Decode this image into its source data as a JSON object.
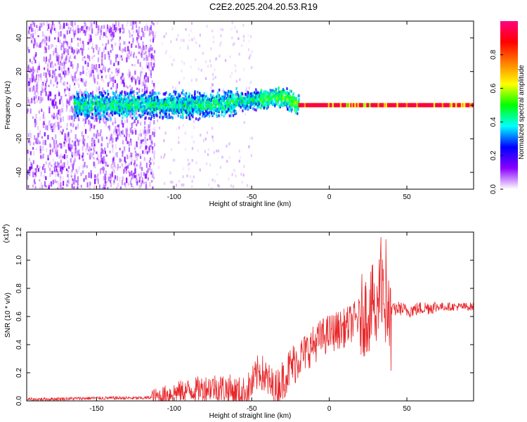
{
  "title": "C2E2.2025.204.20.53.R19",
  "chart_data": [
    {
      "type": "heatmap",
      "xlabel": "Height of straight line (km)",
      "ylabel": "Frequency (Hz)",
      "xlim": [
        -195,
        93
      ],
      "ylim": [
        -50,
        50
      ],
      "xticks": [
        -150,
        -100,
        -50,
        0,
        50
      ],
      "yticks": [
        -40,
        -20,
        0,
        20,
        40
      ],
      "colorbar": {
        "label": "Normalized spectral amplitude",
        "range": [
          0,
          1
        ],
        "ticks": [
          "0.0",
          "0.2",
          "0.4",
          "0.6",
          "0.8"
        ],
        "colors": [
          "#ffffff",
          "#8a00ff",
          "#0000ff",
          "#00ffff",
          "#00ff00",
          "#ffff00",
          "#ff8000",
          "#ff0000",
          "#ff0080"
        ]
      },
      "features": [
        {
          "x_range": [
            -195,
            -115
          ],
          "description": "scattered noise"
        },
        {
          "x_range": [
            -165,
            -20
          ],
          "center_hz": 0,
          "trend": "rises to ~5 Hz near -30 km"
        },
        {
          "x_range": [
            -20,
            93
          ],
          "center_hz": 0,
          "amplitude": "high"
        }
      ]
    },
    {
      "type": "line",
      "xlabel": "Height of straight line (km)",
      "ylabel": "SNR (10 * v/v)",
      "scale_label": "(x10",
      "scale_exponent": "4",
      "xlim": [
        -195,
        93
      ],
      "ylim": [
        0,
        1.2
      ],
      "xticks": [
        -150,
        -100,
        -50,
        0,
        50
      ],
      "yticks": [
        "0.0",
        "0.2",
        "0.4",
        "0.6",
        "0.8",
        "1.0",
        "1.2"
      ],
      "series": [
        {
          "color": "#e8272a",
          "x": [
            -195,
            -150,
            -120,
            -110,
            -100,
            -80,
            -75,
            -65,
            -60,
            -55,
            -50,
            -45,
            -40,
            -35,
            -30,
            -25,
            -20,
            -15,
            -10,
            -5,
            0,
            5,
            10,
            15,
            20,
            25,
            30,
            33,
            35,
            40,
            45,
            50,
            55,
            60,
            70,
            80,
            93
          ],
          "y": [
            0.01,
            0.02,
            0.02,
            0.03,
            0.06,
            0.09,
            0.1,
            0.08,
            0.06,
            0.05,
            0.11,
            0.22,
            0.15,
            0.07,
            0.15,
            0.24,
            0.3,
            0.35,
            0.4,
            0.45,
            0.48,
            0.5,
            0.52,
            0.56,
            0.6,
            0.63,
            0.7,
            0.75,
            0.7,
            0.64,
            0.66,
            0.64,
            0.65,
            0.66,
            0.67,
            0.67,
            0.67
          ]
        }
      ]
    }
  ]
}
